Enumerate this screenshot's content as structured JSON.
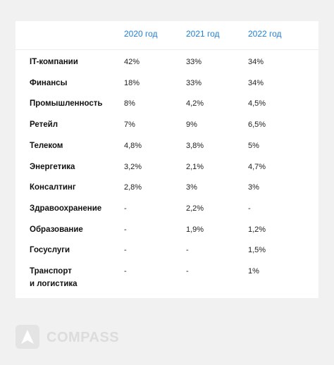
{
  "table": {
    "columns": [
      "2020 год",
      "2021 год",
      "2022 год"
    ],
    "rows": [
      {
        "label": "IT-компании",
        "values": [
          "42%",
          "33%",
          "34%"
        ]
      },
      {
        "label": "Финансы",
        "values": [
          "18%",
          "33%",
          "34%"
        ]
      },
      {
        "label": "Промышленность",
        "values": [
          "8%",
          "4,2%",
          "4,5%"
        ]
      },
      {
        "label": "Ретейл",
        "values": [
          "7%",
          "9%",
          "6,5%"
        ]
      },
      {
        "label": "Телеком",
        "values": [
          "4,8%",
          "3,8%",
          "5%"
        ]
      },
      {
        "label": "Энергетика",
        "values": [
          "3,2%",
          "2,1%",
          "4,7%"
        ]
      },
      {
        "label": "Консалтинг",
        "values": [
          "2,8%",
          "3%",
          "3%"
        ]
      },
      {
        "label": "Здравоохранение",
        "values": [
          "-",
          "2,2%",
          "-"
        ]
      },
      {
        "label": "Образование",
        "values": [
          "-",
          "1,9%",
          "1,2%"
        ]
      },
      {
        "label": "Госуслуги",
        "values": [
          "-",
          "-",
          "1,5%"
        ]
      },
      {
        "label": "Транспорт\nи логистика",
        "values": [
          "-",
          "-",
          "1%"
        ]
      }
    ]
  },
  "brand": {
    "name": "COMPASS"
  }
}
